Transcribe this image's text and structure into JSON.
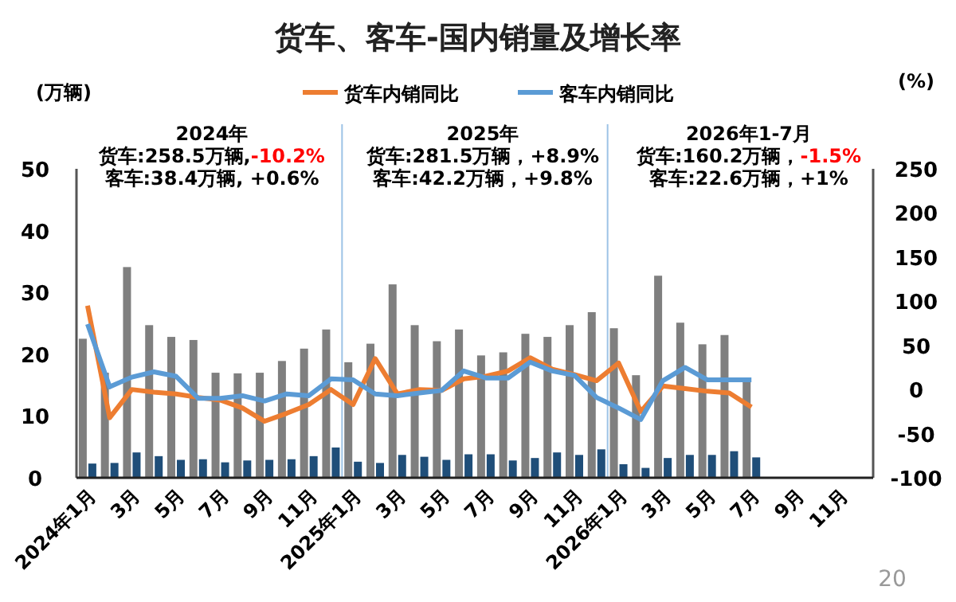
{
  "chart_data": {
    "type": "bar",
    "title": "货车、客车-国内销量及增长率",
    "ylabel": "(万辆)",
    "y2label": "(%)",
    "categories": [
      "2024年1月",
      null,
      "3月",
      null,
      "5月",
      null,
      "7月",
      null,
      "9月",
      null,
      "11月",
      null,
      "2025年1月",
      null,
      "3月",
      null,
      "5月",
      null,
      "7月",
      null,
      "9月",
      null,
      "11月",
      null,
      "2026年1月",
      null,
      "3月",
      null,
      "5月",
      null,
      "7月",
      null,
      "9月",
      null,
      "11月",
      null
    ],
    "series": [
      {
        "color": "#7f7f7f",
        "values": [
          22.5,
          17,
          34.1,
          24.7,
          22.8,
          22.3,
          17.0,
          16.9,
          17.0,
          18.9,
          20.9,
          24.0,
          18.7,
          21.7,
          31.3,
          24.7,
          22.1,
          24.0,
          19.8,
          20.3,
          23.3,
          22.8,
          24.7,
          26.8,
          24.2,
          16.6,
          32.7,
          25.1,
          21.6,
          23.1,
          15.8,
          null,
          null,
          null,
          null,
          null
        ]
      },
      {
        "color": "#1f4e79",
        "values": [
          2.3,
          2.4,
          4.1,
          3.5,
          2.9,
          3.0,
          2.5,
          2.8,
          2.9,
          3.0,
          3.5,
          4.9,
          2.6,
          2.4,
          3.7,
          3.4,
          2.9,
          3.8,
          3.8,
          2.8,
          3.2,
          4.1,
          3.7,
          4.6,
          2.2,
          1.6,
          3.2,
          3.7,
          3.7,
          4.3,
          3.3,
          null,
          null,
          null,
          null,
          null
        ]
      },
      {
        "name": "货车内销同比",
        "type": "line",
        "axis": "y2",
        "color": "#ed7d31",
        "values": [
          95,
          -32,
          0,
          -3,
          -5,
          -9,
          -12,
          -21,
          -36,
          -27,
          -17,
          0,
          -17,
          35,
          -5,
          0,
          -1,
          12,
          15,
          21,
          36,
          23,
          17,
          10,
          30,
          -25,
          4,
          1,
          -2,
          -4,
          -20,
          null,
          null,
          null,
          null,
          null
        ]
      },
      {
        "name": "客车内销同比",
        "type": "line",
        "axis": "y2",
        "color": "#5b9bd5",
        "values": [
          74,
          3,
          14,
          20,
          15,
          -10,
          -10,
          -7,
          -13,
          -5,
          -7,
          12,
          11,
          -5,
          -7,
          -4,
          -1,
          21,
          13,
          13,
          31,
          21,
          16,
          -9,
          -21,
          -34,
          10,
          25,
          11,
          11,
          11,
          null,
          null,
          null,
          null,
          null
        ]
      }
    ],
    "ylim": [
      0,
      50
    ],
    "yticks": [
      0,
      10,
      20,
      30,
      40,
      50
    ],
    "y2lim": [
      -100,
      250
    ],
    "y2ticks": [
      -100,
      -50,
      0,
      50,
      100,
      150,
      200,
      250
    ],
    "legend": "top",
    "annotations": [
      "2024年",
      "货车:258.5万辆,",
      "-10.2%",
      "客车:38.4万辆, +0.6%",
      "2025年",
      "货车:281.5万辆，",
      "+8.9%",
      "客车:42.2万辆，+9.8%",
      "2026年1-7月",
      "货车:160.2万辆，",
      "-1.5%",
      "客车:22.6万辆，+1%",
      "20"
    ]
  }
}
